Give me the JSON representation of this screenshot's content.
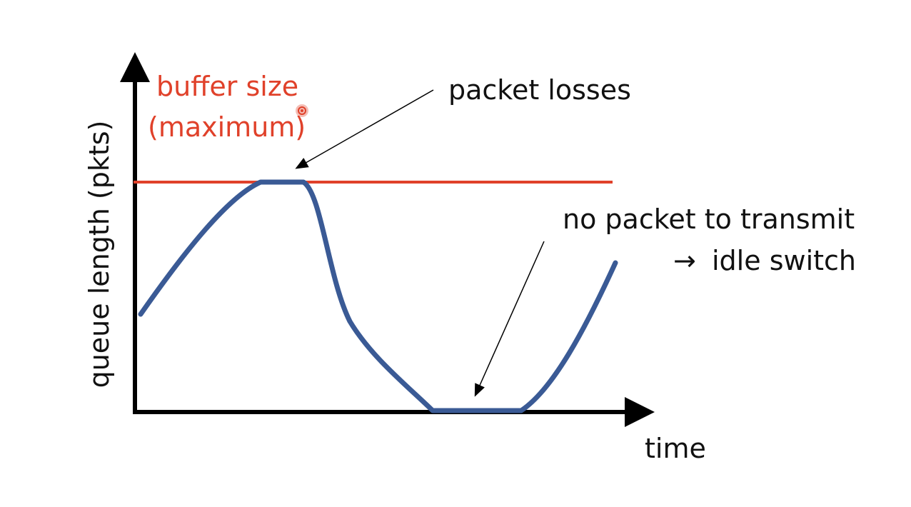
{
  "diagram": {
    "axes": {
      "y_label": "queue length (pkts)",
      "x_label": "time"
    },
    "buffer": {
      "label_line1": "buffer size",
      "label_line2": "(maximum)"
    },
    "annotations": {
      "losses": "packet losses",
      "idle_line1": "no packet to transmit",
      "idle_arrow": "→",
      "idle_line2": "idle switch"
    },
    "colors": {
      "axis": "#000000",
      "buffer": "#e0412a",
      "curve": "#3a5a95",
      "text": "#111111",
      "pointer": "#e0412a"
    }
  }
}
